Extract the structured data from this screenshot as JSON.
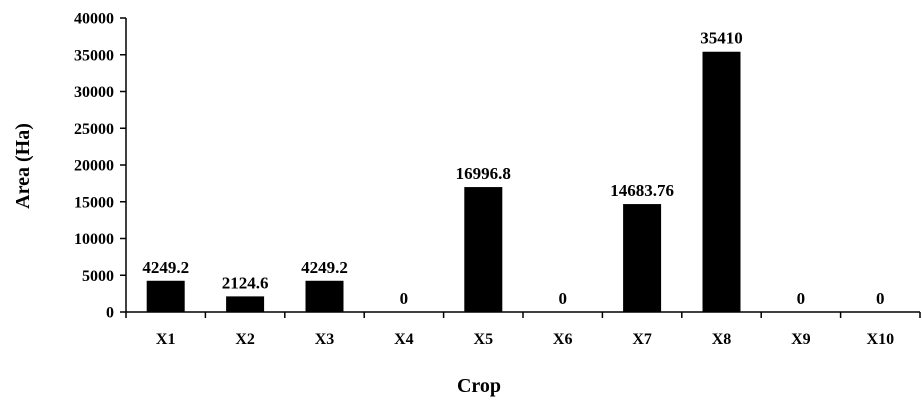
{
  "chart_data": {
    "type": "bar",
    "title": "",
    "xlabel": "Crop",
    "ylabel": "Area (Ha)",
    "categories": [
      "X1",
      "X2",
      "X3",
      "X4",
      "X5",
      "X6",
      "X7",
      "X8",
      "X9",
      "X10"
    ],
    "values": [
      4249.2,
      2124.6,
      4249.2,
      0,
      16996.8,
      0,
      14683.76,
      35410,
      0,
      0
    ],
    "data_labels": [
      "4249.2",
      "2124.6",
      "4249.2",
      "0",
      "16996.8",
      "0",
      "14683.76",
      "35410",
      "0",
      "0"
    ],
    "yticks": [
      0,
      5000,
      10000,
      15000,
      20000,
      25000,
      30000,
      35000,
      40000
    ],
    "ylim": [
      0,
      40000
    ],
    "grid": false,
    "legend": "none",
    "colors": {
      "bar": "#000000",
      "axis": "#000000",
      "background": "#ffffff"
    }
  }
}
